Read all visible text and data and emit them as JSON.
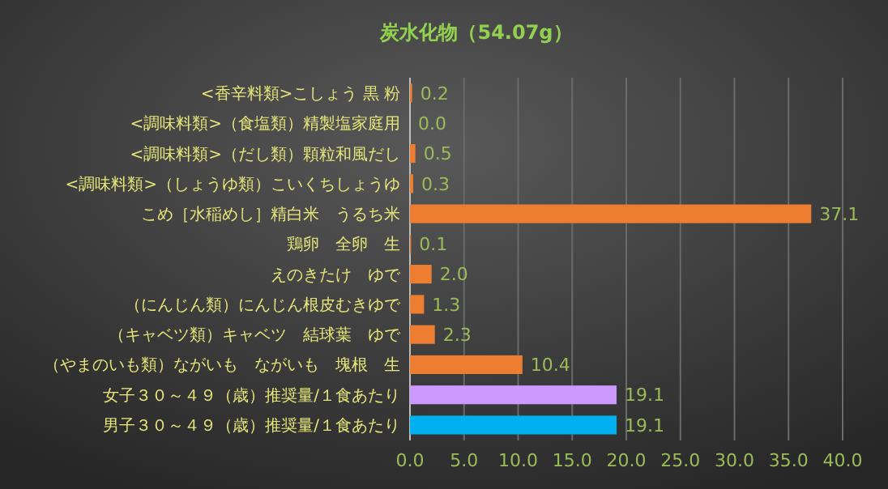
{
  "chart_data": {
    "type": "bar",
    "orientation": "horizontal",
    "title": "炭水化物（54.07g）",
    "categories": [
      "<香辛料類>こしょう 黒 粉",
      "<調味料類>（食塩類）精製塩家庭用",
      "<調味料類>（だし類）顆粒和風だし",
      "<調味料類>（しょうゆ類）こいくちしょうゆ",
      "こめ［水稲めし］精白米　うるち米",
      "鶏卵　全卵　生",
      "えのきたけ　ゆで",
      "（にんじん類）にんじん根皮むきゆで",
      "（キャベツ類）キャベツ　結球葉　ゆで",
      "（やまのいも類）ながいも　ながいも　塊根　生",
      "女子３０～４９（歳）推奨量/１食あたり",
      "男子３０～４９（歳）推奨量/１食あたり"
    ],
    "values": [
      0.2,
      0.0,
      0.5,
      0.3,
      37.1,
      0.1,
      2.0,
      1.3,
      2.3,
      10.4,
      19.1,
      19.1
    ],
    "colors": [
      "#ed7d31",
      "#ed7d31",
      "#ed7d31",
      "#ed7d31",
      "#ed7d31",
      "#ed7d31",
      "#ed7d31",
      "#ed7d31",
      "#ed7d31",
      "#ed7d31",
      "#cc99ff",
      "#00b0f0"
    ],
    "value_labels": [
      "0.2",
      "0.0",
      "0.5",
      "0.3",
      "37.1",
      "0.1",
      "2.0",
      "1.3",
      "2.3",
      "10.4",
      "19.1",
      "19.1"
    ],
    "xlim": [
      0,
      40
    ],
    "xticks": [
      {
        "value": 0,
        "label": "0.0"
      },
      {
        "value": 5,
        "label": "5.0"
      },
      {
        "value": 10,
        "label": "10.0"
      },
      {
        "value": 15,
        "label": "15.0"
      },
      {
        "value": 20,
        "label": "20.0"
      },
      {
        "value": 25,
        "label": "25.0"
      },
      {
        "value": 30,
        "label": "30.0"
      },
      {
        "value": 35,
        "label": "35.0"
      },
      {
        "value": 40,
        "label": "40.0"
      }
    ],
    "grid": "x"
  }
}
